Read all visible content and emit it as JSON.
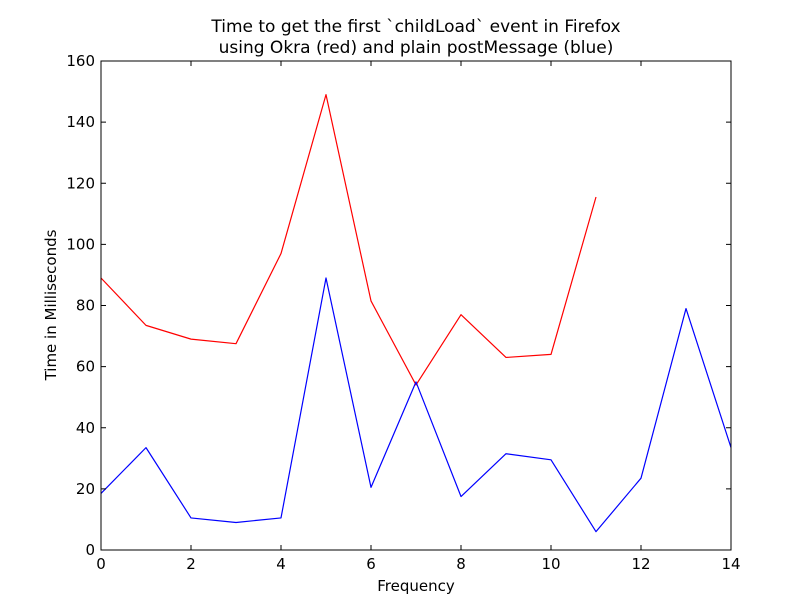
{
  "chart_data": {
    "type": "line",
    "title_lines": [
      "Time to get the first `childLoad` event in Firefox",
      "using Okra (red) and plain postMessage (blue)"
    ],
    "xlabel": "Frequency",
    "ylabel": "Time in Milliseconds",
    "xlim": [
      0,
      14
    ],
    "ylim": [
      0,
      160
    ],
    "xticks": [
      0,
      2,
      4,
      6,
      8,
      10,
      12,
      14
    ],
    "yticks": [
      0,
      20,
      40,
      60,
      80,
      100,
      120,
      140,
      160
    ],
    "grid": false,
    "legend": "none",
    "series": [
      {
        "color": "#ff0000",
        "x": [
          0,
          1,
          2,
          3,
          4,
          5,
          6,
          7,
          8,
          9,
          10,
          11
        ],
        "values": [
          89,
          73.5,
          69,
          67.5,
          97,
          149,
          81.5,
          54,
          77,
          63,
          64,
          115.5
        ]
      },
      {
        "color": "#0000ff",
        "x": [
          0,
          1,
          2,
          3,
          4,
          5,
          6,
          7,
          8,
          9,
          10,
          11,
          12,
          13,
          14
        ],
        "values": [
          18.5,
          33.5,
          10.5,
          9,
          10.5,
          89,
          20.5,
          55,
          17.5,
          31.5,
          29.5,
          6,
          23.5,
          79,
          33.5
        ]
      }
    ]
  }
}
